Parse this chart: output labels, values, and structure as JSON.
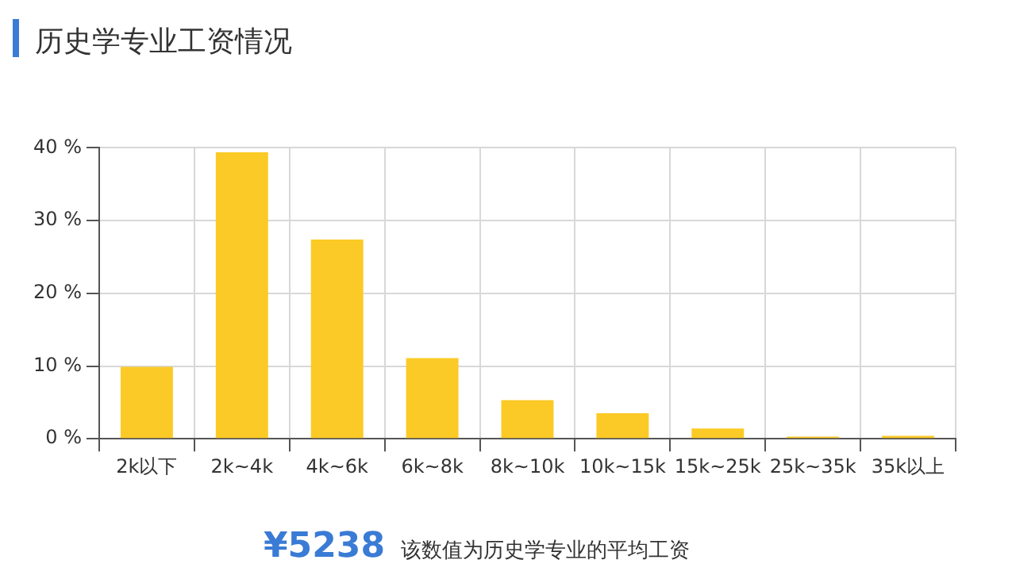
{
  "chart_data": {
    "type": "bar",
    "title": "历史学专业工资情况",
    "categories": [
      "2k以下",
      "2k~4k",
      "4k~6k",
      "6k~8k",
      "8k~10k",
      "10k~15k",
      "15k~25k",
      "25k~35k",
      "35k以上"
    ],
    "values": [
      9.9,
      39.4,
      27.4,
      11.1,
      5.3,
      3.5,
      1.4,
      0.3,
      0.4
    ],
    "color": "#fcca26",
    "ylim": [
      0,
      40
    ],
    "yticks": [
      {
        "value": 0,
        "label": "0 %"
      },
      {
        "value": 10,
        "label": "10 %"
      },
      {
        "value": 20,
        "label": "20 %"
      },
      {
        "value": 30,
        "label": "30 %"
      },
      {
        "value": 40,
        "label": "40 %"
      }
    ],
    "grid": true,
    "legend": false,
    "annotations": [
      "¥5238",
      "该数值为历史学专业的平均工资"
    ]
  }
}
